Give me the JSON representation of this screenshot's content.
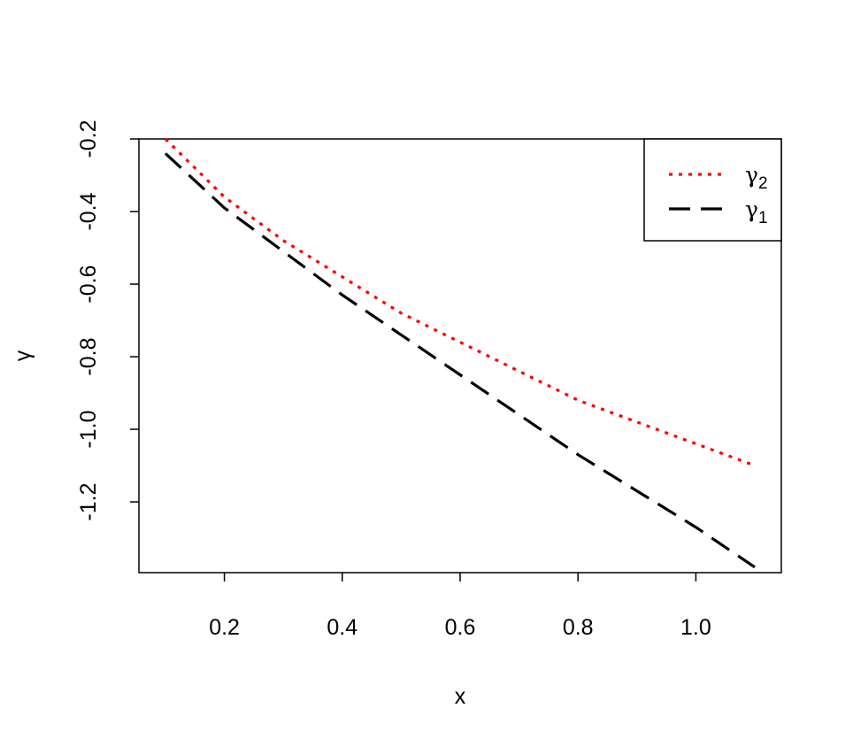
{
  "chart_data": {
    "type": "line",
    "title": "",
    "xlabel": "x",
    "ylabel": "γ",
    "xlim": [
      0.055,
      1.145
    ],
    "ylim": [
      -1.395,
      -0.2
    ],
    "x_ticks": [
      0.2,
      0.4,
      0.6,
      0.8,
      1.0
    ],
    "x_tick_labels": [
      "0.2",
      "0.4",
      "0.6",
      "0.8",
      "1.0"
    ],
    "y_ticks": [
      -0.2,
      -0.4,
      -0.6,
      -0.8,
      -1.0,
      -1.2
    ],
    "y_tick_labels": [
      "-0.2",
      "-0.4",
      "-0.6",
      "-0.8",
      "-1.0",
      "-1.2"
    ],
    "grid": false,
    "legend_position": "top-right",
    "x": [
      0.1,
      0.2,
      0.3,
      0.4,
      0.5,
      0.6,
      0.7,
      0.8,
      0.9,
      1.0,
      1.1
    ],
    "series": [
      {
        "name": "γ2",
        "name_base": "γ",
        "name_sub": "2",
        "color": "#ff0000",
        "dash": "dotted",
        "values": [
          -0.2,
          -0.36,
          -0.48,
          -0.58,
          -0.68,
          -0.76,
          -0.84,
          -0.92,
          -0.98,
          -1.04,
          -1.1
        ]
      },
      {
        "name": "γ1",
        "name_base": "γ",
        "name_sub": "1",
        "color": "#000000",
        "dash": "dashed",
        "values": [
          -0.24,
          -0.39,
          -0.51,
          -0.63,
          -0.74,
          -0.85,
          -0.96,
          -1.07,
          -1.17,
          -1.27,
          -1.38
        ]
      }
    ]
  }
}
